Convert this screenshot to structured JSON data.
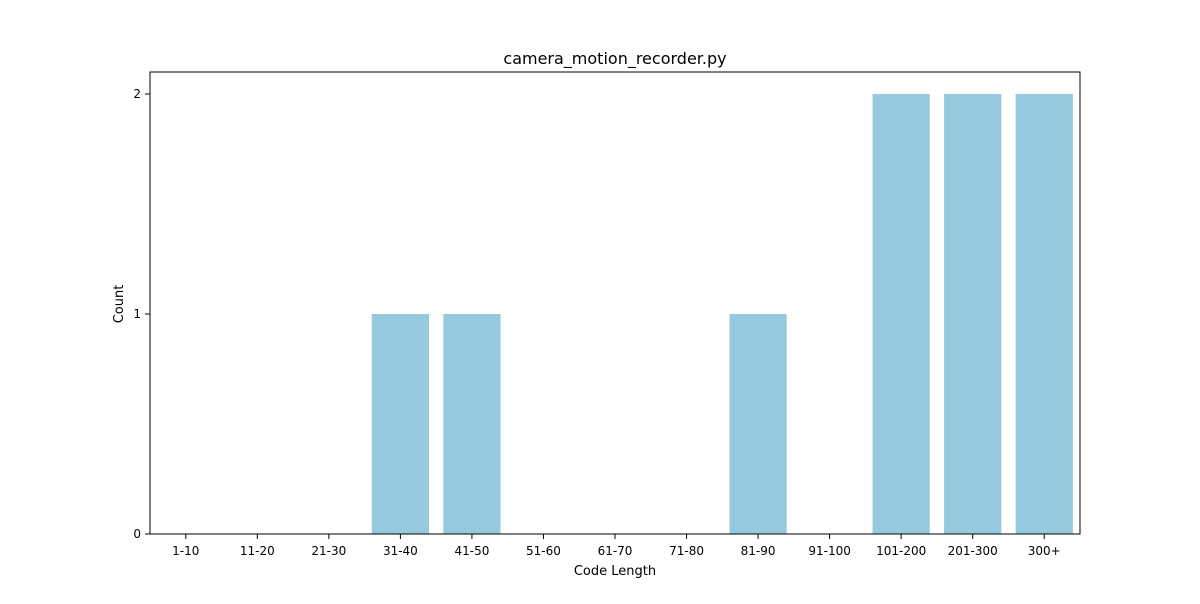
{
  "chart_data": {
    "type": "bar",
    "title": "camera_motion_recorder.py",
    "xlabel": "Code Length",
    "ylabel": "Count",
    "categories": [
      "1-10",
      "11-20",
      "21-30",
      "31-40",
      "41-50",
      "51-60",
      "61-70",
      "71-80",
      "81-90",
      "91-100",
      "101-200",
      "201-300",
      "300+"
    ],
    "values": [
      0,
      0,
      0,
      1,
      1,
      0,
      0,
      0,
      1,
      0,
      2,
      2,
      2
    ],
    "ylim": [
      0,
      2.1
    ],
    "yticks": [
      0,
      1,
      2
    ],
    "grid": false,
    "legend": "none",
    "bar_color": "#96c9de"
  }
}
